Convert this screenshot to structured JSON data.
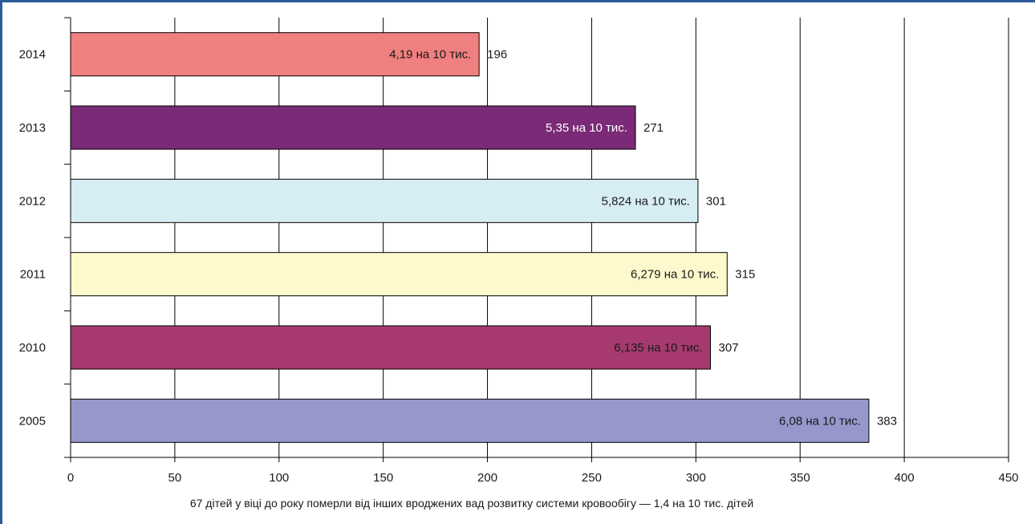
{
  "chart_data": {
    "type": "bar",
    "orientation": "horizontal",
    "categories": [
      "2014",
      "2013",
      "2012",
      "2011",
      "2010",
      "2005"
    ],
    "values": [
      196,
      271,
      301,
      315,
      307,
      383
    ],
    "rate_labels": [
      "4,19 на 10 тис.",
      "5,35 на 10 тис.",
      "5,824 на 10 тис.",
      "6,279 на 10 тис.",
      "6,135 на 10 тис.",
      "6,08 на 10 тис."
    ],
    "colors": [
      "#f07f7f",
      "#7a2a77",
      "#d6edf3",
      "#fdf9cc",
      "#a63a6f",
      "#9698cc"
    ],
    "rate_label_colors": [
      "#1a1a1a",
      "#ffffff",
      "#1a1a1a",
      "#1a1a1a",
      "#1a1a1a",
      "#1a1a1a"
    ],
    "xlim": [
      0,
      450
    ],
    "xticks": [
      0,
      50,
      100,
      150,
      200,
      250,
      300,
      350,
      400,
      450
    ],
    "grid": true,
    "xlabel": "67 дітей у віці до року померли від інших вроджених вад розвитку системи кровообігу — 1,4 на 10 тис. дітей"
  }
}
